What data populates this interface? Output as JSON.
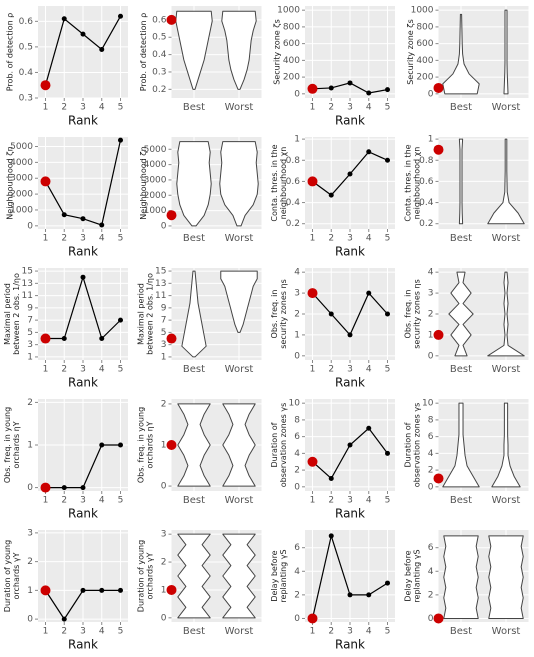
{
  "chart_data": [
    {
      "type": "line",
      "ylabel": [
        "Prob. of detection ρ"
      ],
      "xlabel": "Rank",
      "x": [
        1,
        2,
        3,
        4,
        5
      ],
      "values": [
        0.35,
        0.61,
        0.55,
        0.49,
        0.62
      ],
      "xlim": [
        0.6,
        5.4
      ],
      "xticks": [
        1,
        2,
        3,
        4,
        5
      ],
      "ylim": [
        0.3,
        0.66
      ],
      "yticks": [
        0.3,
        0.4,
        0.5,
        0.6
      ],
      "color": "#000000",
      "highlight_color": "#cc0000"
    },
    {
      "type": "violin",
      "ylabel": [
        "Prob. of detection ρ"
      ],
      "categories": [
        "Best",
        "Worst"
      ],
      "point": 0.6,
      "ylim": [
        0.15,
        0.68
      ],
      "yticks": [
        0.2,
        0.3,
        0.4,
        0.5,
        0.6
      ],
      "highlight_color": "#cc0000",
      "violins": [
        {
          "range": [
            0.2,
            0.65
          ],
          "widths": [
            0.05,
            0.2,
            0.35,
            0.5,
            0.6,
            0.7,
            0.8,
            0.9,
            0.85
          ]
        },
        {
          "range": [
            0.2,
            0.65
          ],
          "widths": [
            0.05,
            0.25,
            0.4,
            0.5,
            0.55,
            0.6,
            0.7,
            0.85,
            0.8
          ]
        }
      ]
    },
    {
      "type": "line",
      "ylabel": [
        "Security zone ζs"
      ],
      "xlabel": "Rank",
      "x": [
        1,
        2,
        3,
        4,
        5
      ],
      "values": [
        60,
        70,
        130,
        10,
        50
      ],
      "xlim": [
        0.6,
        5.4
      ],
      "xticks": [
        1,
        2,
        3,
        4,
        5
      ],
      "ylim": [
        -50,
        1050
      ],
      "yticks": [
        0,
        200,
        400,
        600,
        800,
        1000
      ],
      "color": "#000000",
      "highlight_color": "#cc0000"
    },
    {
      "type": "violin",
      "ylabel": [
        "Security zone ζs"
      ],
      "categories": [
        "Best",
        "Worst"
      ],
      "point": 70,
      "ylim": [
        -50,
        1050
      ],
      "yticks": [
        0,
        200,
        400,
        600,
        800,
        1000
      ],
      "highlight_color": "#cc0000",
      "violins": [
        {
          "range": [
            0,
            950
          ],
          "widths": [
            0.8,
            0.9,
            0.4,
            0.15,
            0.08,
            0.06,
            0.05,
            0.04,
            0.03
          ]
        },
        {
          "range": [
            0,
            1000
          ],
          "widths": [
            0.1,
            0.08,
            0.06,
            0.05,
            0.05,
            0.05,
            0.05,
            0.05,
            0.05
          ]
        }
      ]
    },
    {
      "type": "line",
      "ylabel": [
        "Neighbourhood ζn"
      ],
      "xlabel": "Rank",
      "x": [
        1,
        2,
        3,
        4,
        5
      ],
      "values": [
        2800,
        700,
        450,
        50,
        5400
      ],
      "xlim": [
        0.6,
        5.4
      ],
      "xticks": [
        1,
        2,
        3,
        4,
        5
      ],
      "ylim": [
        -200,
        5600
      ],
      "yticks": [
        0,
        1000,
        2000,
        3000,
        4000,
        5000
      ],
      "color": "#000000",
      "highlight_color": "#cc0000"
    },
    {
      "type": "violin",
      "ylabel": [
        "Neighbourhood ζn"
      ],
      "categories": [
        "Best",
        "Worst"
      ],
      "point": 700,
      "ylim": [
        -200,
        5800
      ],
      "yticks": [
        0,
        1000,
        2000,
        3000,
        4000,
        5000
      ],
      "highlight_color": "#cc0000",
      "violins": [
        {
          "range": [
            0,
            5500
          ],
          "widths": [
            0.1,
            0.5,
            0.7,
            0.8,
            0.85,
            0.8,
            0.75,
            0.8,
            0.7
          ]
        },
        {
          "range": [
            0,
            5500
          ],
          "widths": [
            0.1,
            0.3,
            0.7,
            0.9,
            0.95,
            0.9,
            0.85,
            0.9,
            0.8
          ]
        }
      ]
    },
    {
      "type": "line",
      "ylabel": [
        "Conta. thres. in the",
        "neighbourhood χn"
      ],
      "xlabel": "Rank",
      "x": [
        1,
        2,
        3,
        4,
        5
      ],
      "values": [
        0.6,
        0.47,
        0.67,
        0.88,
        0.8
      ],
      "xlim": [
        0.6,
        5.4
      ],
      "xticks": [
        1,
        2,
        3,
        4,
        5
      ],
      "ylim": [
        0.15,
        1.02
      ],
      "yticks": [
        0.2,
        0.4,
        0.6,
        0.8,
        1.0
      ],
      "color": "#000000",
      "highlight_color": "#cc0000"
    },
    {
      "type": "violin",
      "ylabel": [
        "Conta. thres. in the",
        "neighbourhood χn"
      ],
      "categories": [
        "Best",
        "Worst"
      ],
      "point": 0.9,
      "ylim": [
        0.15,
        1.02
      ],
      "yticks": [
        0.2,
        0.4,
        0.6,
        0.8,
        1.0
      ],
      "highlight_color": "#cc0000",
      "violins": [
        {
          "range": [
            0.2,
            1.0
          ],
          "widths": [
            0.08,
            0.06,
            0.05,
            0.05,
            0.05,
            0.05,
            0.05,
            0.05,
            0.08
          ]
        },
        {
          "range": [
            0.2,
            1.0
          ],
          "widths": [
            0.9,
            0.6,
            0.15,
            0.06,
            0.05,
            0.04,
            0.04,
            0.04,
            0.04
          ]
        }
      ]
    },
    {
      "type": "line",
      "ylabel": [
        "Maximal period",
        "between 2 obs. 1/ηo"
      ],
      "xlabel": "Rank",
      "x": [
        1,
        2,
        3,
        4,
        5
      ],
      "values": [
        4,
        4,
        14,
        4,
        7
      ],
      "xlim": [
        0.6,
        5.4
      ],
      "xticks": [
        1,
        2,
        3,
        4,
        5
      ],
      "ylim": [
        0.5,
        15.5
      ],
      "yticks": [
        1,
        3,
        5,
        7,
        9,
        11,
        13,
        15
      ],
      "color": "#000000",
      "highlight_color": "#cc0000"
    },
    {
      "type": "violin",
      "ylabel": [
        "Maximal period",
        "between 2 obs. 1/ηo"
      ],
      "categories": [
        "Best",
        "Worst"
      ],
      "point": 4,
      "ylim": [
        0.5,
        15.5
      ],
      "yticks": [
        1,
        3,
        5,
        7,
        9,
        11,
        13,
        15
      ],
      "highlight_color": "#cc0000",
      "violins": [
        {
          "range": [
            1,
            15
          ],
          "widths": [
            0.05,
            0.6,
            0.5,
            0.4,
            0.3,
            0.2,
            0.15,
            0.1,
            0.05
          ]
        },
        {
          "range": [
            5,
            15
          ],
          "widths": [
            0.05,
            0.2,
            0.3,
            0.4,
            0.5,
            0.6,
            0.7,
            0.9,
            0.9
          ]
        }
      ]
    },
    {
      "type": "line",
      "ylabel": [
        "Obs. freq. in",
        "security zones ηs"
      ],
      "xlabel": "Rank",
      "x": [
        1,
        2,
        3,
        4,
        5
      ],
      "values": [
        3,
        2,
        1,
        3,
        2
      ],
      "xlim": [
        0.6,
        5.4
      ],
      "xticks": [
        1,
        2,
        3,
        4,
        5
      ],
      "ylim": [
        -0.2,
        4.2
      ],
      "yticks": [
        0,
        1,
        2,
        3,
        4
      ],
      "color": "#000000",
      "highlight_color": "#cc0000"
    },
    {
      "type": "violin",
      "ylabel": [
        "Obs. freq. in",
        "security zones ηs"
      ],
      "categories": [
        "Best",
        "Worst"
      ],
      "point": 1,
      "ylim": [
        -0.2,
        4.2
      ],
      "yticks": [
        0,
        1,
        2,
        3,
        4
      ],
      "highlight_color": "#cc0000",
      "violins": [
        {
          "range": [
            0,
            4
          ],
          "widths": [
            0.3,
            0.1,
            0.5,
            0.1,
            0.6,
            0.1,
            0.5,
            0.1,
            0.2
          ]
        },
        {
          "range": [
            0,
            4
          ],
          "widths": [
            0.9,
            0.1,
            0.05,
            0.1,
            0.05,
            0.1,
            0.05,
            0.1,
            0.05
          ]
        }
      ]
    },
    {
      "type": "line",
      "ylabel": [
        "Obs. freq. in young",
        "orchards ηY"
      ],
      "xlabel": "Rank",
      "x": [
        1,
        2,
        3,
        4,
        5
      ],
      "values": [
        0,
        0,
        0,
        1,
        1
      ],
      "xlim": [
        0.6,
        5.4
      ],
      "xticks": [
        1,
        2,
        3,
        4,
        5
      ],
      "ylim": [
        -0.08,
        2.08
      ],
      "yticks": [
        0,
        1,
        2
      ],
      "color": "#000000",
      "highlight_color": "#cc0000"
    },
    {
      "type": "violin",
      "ylabel": [
        "Obs. freq. in young",
        "orchards ηY"
      ],
      "categories": [
        "Best",
        "Worst"
      ],
      "point": 1,
      "ylim": [
        -0.12,
        2.12
      ],
      "yticks": [
        0,
        1,
        2
      ],
      "highlight_color": "#cc0000",
      "violins": [
        {
          "range": [
            0,
            2
          ],
          "widths": [
            0.8,
            0.5,
            0.3,
            0.5,
            0.8,
            0.5,
            0.3,
            0.5,
            0.8
          ]
        },
        {
          "range": [
            0,
            2
          ],
          "widths": [
            0.8,
            0.5,
            0.3,
            0.5,
            0.8,
            0.5,
            0.3,
            0.5,
            0.8
          ]
        }
      ]
    },
    {
      "type": "line",
      "ylabel": [
        "Duration of",
        "observation zones γs"
      ],
      "xlabel": "Rank",
      "x": [
        1,
        2,
        3,
        4,
        5
      ],
      "values": [
        3,
        1,
        5,
        7,
        4
      ],
      "xlim": [
        0.6,
        5.4
      ],
      "xticks": [
        1,
        2,
        3,
        4,
        5
      ],
      "ylim": [
        -0.5,
        10.5
      ],
      "yticks": [
        0,
        2,
        4,
        6,
        8,
        10
      ],
      "color": "#000000",
      "highlight_color": "#cc0000"
    },
    {
      "type": "violin",
      "ylabel": [
        "Duration of",
        "observation zones γs"
      ],
      "categories": [
        "Best",
        "Worst"
      ],
      "point": 1,
      "ylim": [
        -0.5,
        10.5
      ],
      "yticks": [
        0,
        2,
        4,
        6,
        8,
        10
      ],
      "highlight_color": "#cc0000",
      "violins": [
        {
          "range": [
            0,
            10
          ],
          "widths": [
            0.9,
            0.6,
            0.3,
            0.2,
            0.15,
            0.1,
            0.1,
            0.1,
            0.1
          ]
        },
        {
          "range": [
            0,
            10
          ],
          "widths": [
            0.7,
            0.4,
            0.2,
            0.1,
            0.1,
            0.08,
            0.08,
            0.08,
            0.08
          ]
        }
      ]
    },
    {
      "type": "line",
      "ylabel": [
        "Duration of young",
        "orchards γY"
      ],
      "xlabel": "Rank",
      "x": [
        1,
        2,
        3,
        4,
        5
      ],
      "values": [
        1,
        0,
        1,
        1,
        1
      ],
      "xlim": [
        0.6,
        5.4
      ],
      "xticks": [
        1,
        2,
        3,
        4,
        5
      ],
      "ylim": [
        -0.1,
        3.1
      ],
      "yticks": [
        0,
        1,
        2,
        3
      ],
      "color": "#000000",
      "highlight_color": "#cc0000"
    },
    {
      "type": "violin",
      "ylabel": [
        "Duration of young",
        "orchards γY"
      ],
      "categories": [
        "Best",
        "Worst"
      ],
      "point": 1,
      "ylim": [
        -0.15,
        3.15
      ],
      "yticks": [
        0,
        1,
        2,
        3
      ],
      "highlight_color": "#cc0000",
      "violins": [
        {
          "range": [
            0,
            3
          ],
          "widths": [
            0.8,
            0.4,
            0.8,
            0.4,
            0.8,
            0.4,
            0.8,
            0.4,
            0.8
          ]
        },
        {
          "range": [
            0,
            3
          ],
          "widths": [
            0.8,
            0.4,
            0.8,
            0.4,
            0.8,
            0.4,
            0.8,
            0.4,
            0.8
          ]
        }
      ]
    },
    {
      "type": "line",
      "ylabel": [
        "Delay before",
        "replanting γS"
      ],
      "xlabel": "Rank",
      "x": [
        1,
        2,
        3,
        4,
        5
      ],
      "values": [
        0,
        7,
        2,
        2,
        3
      ],
      "xlim": [
        0.6,
        5.4
      ],
      "xticks": [
        1,
        2,
        3,
        4,
        5
      ],
      "ylim": [
        -0.3,
        7.5
      ],
      "yticks": [
        0,
        2,
        4,
        6
      ],
      "color": "#000000",
      "highlight_color": "#cc0000"
    },
    {
      "type": "violin",
      "ylabel": [
        "Delay before",
        "replanting γS"
      ],
      "categories": [
        "Best",
        "Worst"
      ],
      "point": 0,
      "ylim": [
        -0.3,
        7.5
      ],
      "yticks": [
        0,
        2,
        4,
        6
      ],
      "highlight_color": "#cc0000",
      "violins": [
        {
          "range": [
            0,
            7
          ],
          "widths": [
            0.85,
            0.75,
            0.85,
            0.75,
            0.85,
            0.75,
            0.85,
            0.75,
            0.85
          ]
        },
        {
          "range": [
            0,
            7
          ],
          "widths": [
            0.85,
            0.75,
            0.85,
            0.75,
            0.85,
            0.75,
            0.85,
            0.75,
            0.85
          ]
        }
      ]
    }
  ]
}
